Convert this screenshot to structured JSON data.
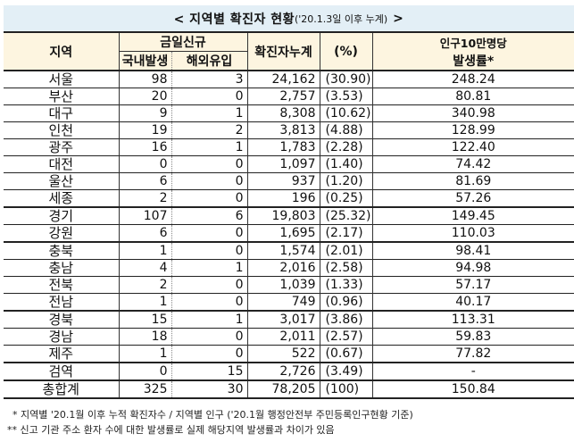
{
  "title": {
    "main": "< 지역별 확진자 현황",
    "sub": "('20.1.3일 이후 누계)",
    "end": ">"
  },
  "headers": {
    "region": "지역",
    "today_new": "금일신규",
    "domestic": "국내발생",
    "overseas": "해외유입",
    "cumulative": "확진자누계",
    "percent": "(%)",
    "rate_line1": "인구10만명당",
    "rate_line2": "발생률*"
  },
  "rows": [
    {
      "region": "서울",
      "domestic": "98",
      "overseas": "3",
      "cumulative": "24,162",
      "percent": "(30.90)",
      "rate": "248.24"
    },
    {
      "region": "부산",
      "domestic": "20",
      "overseas": "0",
      "cumulative": "2,757",
      "percent": "(3.53)",
      "rate": "80.81"
    },
    {
      "region": "대구",
      "domestic": "9",
      "overseas": "1",
      "cumulative": "8,308",
      "percent": "(10.62)",
      "rate": "340.98"
    },
    {
      "region": "인천",
      "domestic": "19",
      "overseas": "2",
      "cumulative": "3,813",
      "percent": "(4.88)",
      "rate": "128.99"
    },
    {
      "region": "광주",
      "domestic": "16",
      "overseas": "1",
      "cumulative": "1,783",
      "percent": "(2.28)",
      "rate": "122.40"
    },
    {
      "region": "대전",
      "domestic": "0",
      "overseas": "0",
      "cumulative": "1,097",
      "percent": "(1.40)",
      "rate": "74.42"
    },
    {
      "region": "울산",
      "domestic": "6",
      "overseas": "0",
      "cumulative": "937",
      "percent": "(1.20)",
      "rate": "81.69"
    },
    {
      "region": "세종",
      "domestic": "2",
      "overseas": "0",
      "cumulative": "196",
      "percent": "(0.25)",
      "rate": "57.26"
    },
    {
      "region": "경기",
      "domestic": "107",
      "overseas": "6",
      "cumulative": "19,803",
      "percent": "(25.32)",
      "rate": "149.45"
    },
    {
      "region": "강원",
      "domestic": "6",
      "overseas": "0",
      "cumulative": "1,695",
      "percent": "(2.17)",
      "rate": "110.03"
    },
    {
      "region": "충북",
      "domestic": "1",
      "overseas": "0",
      "cumulative": "1,574",
      "percent": "(2.01)",
      "rate": "98.41"
    },
    {
      "region": "충남",
      "domestic": "4",
      "overseas": "1",
      "cumulative": "2,016",
      "percent": "(2.58)",
      "rate": "94.98"
    },
    {
      "region": "전북",
      "domestic": "2",
      "overseas": "0",
      "cumulative": "1,039",
      "percent": "(1.33)",
      "rate": "57.17"
    },
    {
      "region": "전남",
      "domestic": "1",
      "overseas": "0",
      "cumulative": "749",
      "percent": "(0.96)",
      "rate": "40.17"
    },
    {
      "region": "경북",
      "domestic": "15",
      "overseas": "1",
      "cumulative": "3,017",
      "percent": "(3.86)",
      "rate": "113.31"
    },
    {
      "region": "경남",
      "domestic": "18",
      "overseas": "0",
      "cumulative": "2,011",
      "percent": "(2.57)",
      "rate": "59.83"
    },
    {
      "region": "제주",
      "domestic": "1",
      "overseas": "0",
      "cumulative": "522",
      "percent": "(0.67)",
      "rate": "77.82"
    },
    {
      "region": "검역",
      "domestic": "0",
      "overseas": "15",
      "cumulative": "2,726",
      "percent": "(3.49)",
      "rate": "-"
    },
    {
      "region": "총합계",
      "domestic": "325",
      "overseas": "30",
      "cumulative": "78,205",
      "percent": "(100)",
      "rate": "150.84"
    }
  ],
  "notes": [
    "* 지역별 '20.1월 이후 누적 확진자수 / 지역별 인구 ('20.1월 행정안전부 주민등록인구현황 기준)",
    "** 신고 기관 주소 환자 수에 대한 발생률로 실제 해당지역 발생률과 차이가 있음"
  ],
  "colors": {
    "title_bg": "#e3eff6",
    "header_bg": "#fdf5e0"
  }
}
